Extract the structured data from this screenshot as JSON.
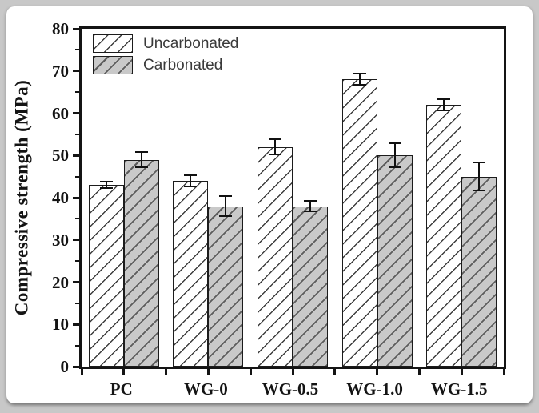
{
  "figure": {
    "background_color": "#c8c8c8",
    "card_color": "#ffffff",
    "axis_color": "#141414"
  },
  "chart_data": {
    "type": "bar",
    "title": "",
    "xlabel": "",
    "ylabel": "Compressive strength (MPa)",
    "categories": [
      "PC",
      "WG-0",
      "WG-0.5",
      "WG-1.0",
      "WG-1.5"
    ],
    "series": [
      {
        "name": "Uncarbonated",
        "values": [
          43,
          44,
          52,
          68,
          62
        ],
        "errors": [
          1,
          1.5,
          2,
          1.5,
          1.5
        ],
        "fill": "#ffffff",
        "hatch": "diagonal"
      },
      {
        "name": "Carbonated",
        "values": [
          49,
          38,
          38,
          50,
          45
        ],
        "errors": [
          2,
          2.5,
          1.5,
          3,
          3.5
        ],
        "fill": "#c9c9c9",
        "hatch": "diagonal"
      }
    ],
    "ylim": [
      0,
      80
    ],
    "yticks": [
      0,
      10,
      20,
      30,
      40,
      50,
      60,
      70,
      80
    ],
    "yticks_minor": [
      5,
      15,
      25,
      35,
      45,
      55,
      65,
      75
    ],
    "grid": false,
    "legend_position": "top-left",
    "error_bars": true
  }
}
